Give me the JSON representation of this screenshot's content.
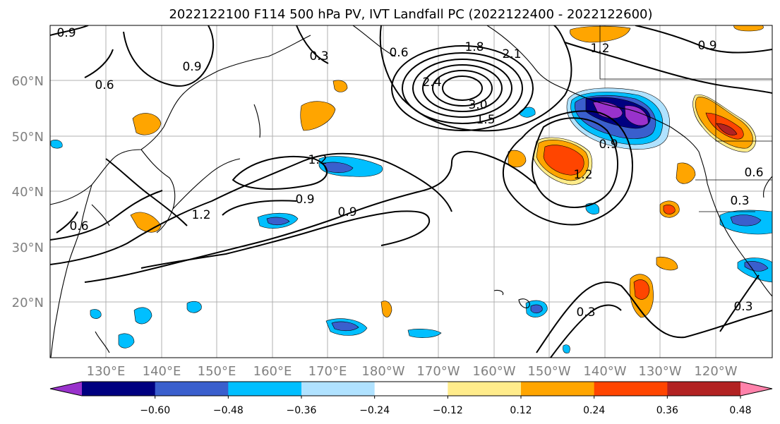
{
  "title": "2022122100 F114 500 hPa PV, IVT Landfall PC (2022122400 - 2022122600)",
  "map": {
    "lon_labels": [
      "130°E",
      "140°E",
      "150°E",
      "160°E",
      "170°E",
      "180°W",
      "170°W",
      "160°W",
      "150°W",
      "140°W",
      "130°W",
      "120°W"
    ],
    "lat_labels": [
      "60°N",
      "50°N",
      "40°N",
      "30°N",
      "20°N"
    ],
    "contour_labels": [
      "0.9",
      "0.6",
      "0.9",
      "0.3",
      "0.6",
      "1.8",
      "2.1",
      "2.4",
      "3.0",
      "1.5",
      "1.2",
      "0.9",
      "1.2",
      "0.9",
      "0.9",
      "1.2",
      "1.2",
      "0.9",
      "0.6",
      "0.3",
      "0.3",
      "0.3",
      "0.6"
    ]
  },
  "colorbar": {
    "ticks": [
      "−0.60",
      "−0.48",
      "−0.36",
      "−0.24",
      "−0.12",
      "0.12",
      "0.24",
      "0.36",
      "0.48",
      "0.60"
    ],
    "colors": [
      "#9932cc",
      "#000080",
      "#3a5fcd",
      "#00bfff",
      "#b0e2ff",
      "#ffffff",
      "#ffec8b",
      "#ffa500",
      "#ff4500",
      "#b22222",
      "#ff82ab"
    ]
  }
}
